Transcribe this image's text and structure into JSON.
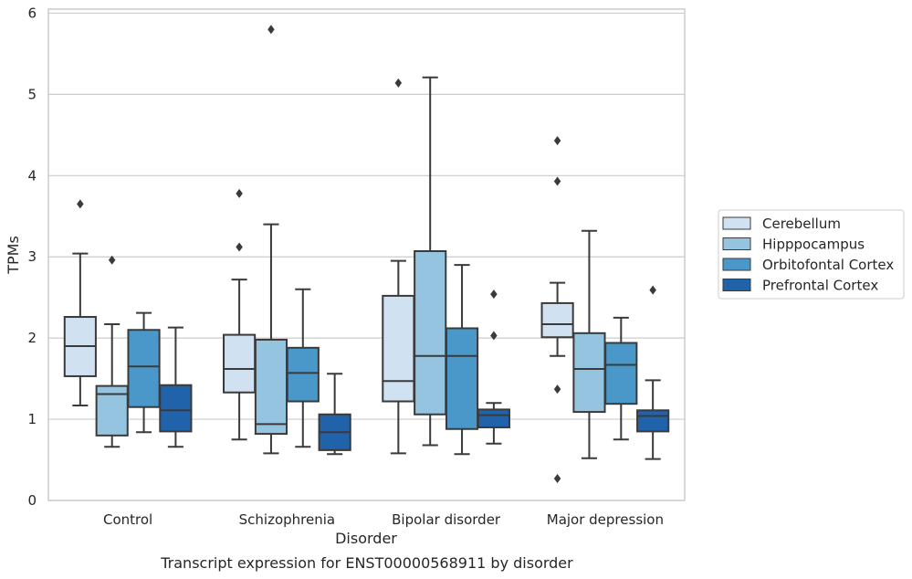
{
  "chart_data": {
    "type": "box",
    "xlabel": "Disorder",
    "ylabel": "TPMs",
    "caption": "Transcript expression for ENST00000568911 by disorder",
    "ylim": [
      0,
      6.05
    ],
    "yticks": [
      0,
      1,
      2,
      3,
      4,
      5,
      6
    ],
    "grid": "horizontal",
    "legend_position": "right",
    "categories": [
      "Control",
      "Schizophrenia",
      "Bipolar disorder",
      "Major depression"
    ],
    "series": [
      {
        "name": "Cerebellum",
        "color": "#d0e1f2",
        "boxes": [
          {
            "whisker_low": 1.17,
            "q1": 1.53,
            "median": 1.9,
            "q3": 2.26,
            "whisker_high": 3.04,
            "outliers": [
              3.65
            ]
          },
          {
            "whisker_low": 0.75,
            "q1": 1.33,
            "median": 1.62,
            "q3": 2.04,
            "whisker_high": 2.72,
            "outliers": [
              3.78,
              3.12
            ]
          },
          {
            "whisker_low": 0.58,
            "q1": 1.22,
            "median": 1.47,
            "q3": 2.52,
            "whisker_high": 2.95,
            "outliers": [
              5.14
            ]
          },
          {
            "whisker_low": 1.78,
            "q1": 2.01,
            "median": 2.17,
            "q3": 2.43,
            "whisker_high": 2.68,
            "outliers": [
              4.43,
              3.93,
              1.37,
              0.27
            ]
          }
        ]
      },
      {
        "name": "Hipppocampus",
        "color": "#94c4df",
        "boxes": [
          {
            "whisker_low": 0.66,
            "q1": 0.8,
            "median": 1.31,
            "q3": 1.41,
            "whisker_high": 2.17,
            "outliers": [
              2.96
            ]
          },
          {
            "whisker_low": 0.58,
            "q1": 0.82,
            "median": 0.94,
            "q3": 1.98,
            "whisker_high": 3.4,
            "outliers": [
              5.8
            ]
          },
          {
            "whisker_low": 0.68,
            "q1": 1.06,
            "median": 1.78,
            "q3": 3.07,
            "whisker_high": 5.21,
            "outliers": []
          },
          {
            "whisker_low": 0.52,
            "q1": 1.09,
            "median": 1.62,
            "q3": 2.06,
            "whisker_high": 3.32,
            "outliers": []
          }
        ]
      },
      {
        "name": "Orbitofontal Cortex",
        "color": "#4a98c9",
        "boxes": [
          {
            "whisker_low": 0.84,
            "q1": 1.15,
            "median": 1.65,
            "q3": 2.1,
            "whisker_high": 2.31,
            "outliers": []
          },
          {
            "whisker_low": 0.66,
            "q1": 1.22,
            "median": 1.57,
            "q3": 1.88,
            "whisker_high": 2.6,
            "outliers": []
          },
          {
            "whisker_low": 0.57,
            "q1": 0.88,
            "median": 1.78,
            "q3": 2.12,
            "whisker_high": 2.9,
            "outliers": []
          },
          {
            "whisker_low": 0.75,
            "q1": 1.19,
            "median": 1.67,
            "q3": 1.94,
            "whisker_high": 2.25,
            "outliers": []
          }
        ]
      },
      {
        "name": "Prefrontal Cortex",
        "color": "#2163aa",
        "boxes": [
          {
            "whisker_low": 0.66,
            "q1": 0.85,
            "median": 1.11,
            "q3": 1.42,
            "whisker_high": 2.13,
            "outliers": []
          },
          {
            "whisker_low": 0.57,
            "q1": 0.62,
            "median": 0.84,
            "q3": 1.06,
            "whisker_high": 1.56,
            "outliers": []
          },
          {
            "whisker_low": 0.7,
            "q1": 0.9,
            "median": 1.05,
            "q3": 1.12,
            "whisker_high": 1.2,
            "outliers": [
              2.54,
              2.03
            ]
          },
          {
            "whisker_low": 0.51,
            "q1": 0.85,
            "median": 1.04,
            "q3": 1.11,
            "whisker_high": 1.48,
            "outliers": [
              2.59
            ]
          }
        ]
      }
    ]
  }
}
